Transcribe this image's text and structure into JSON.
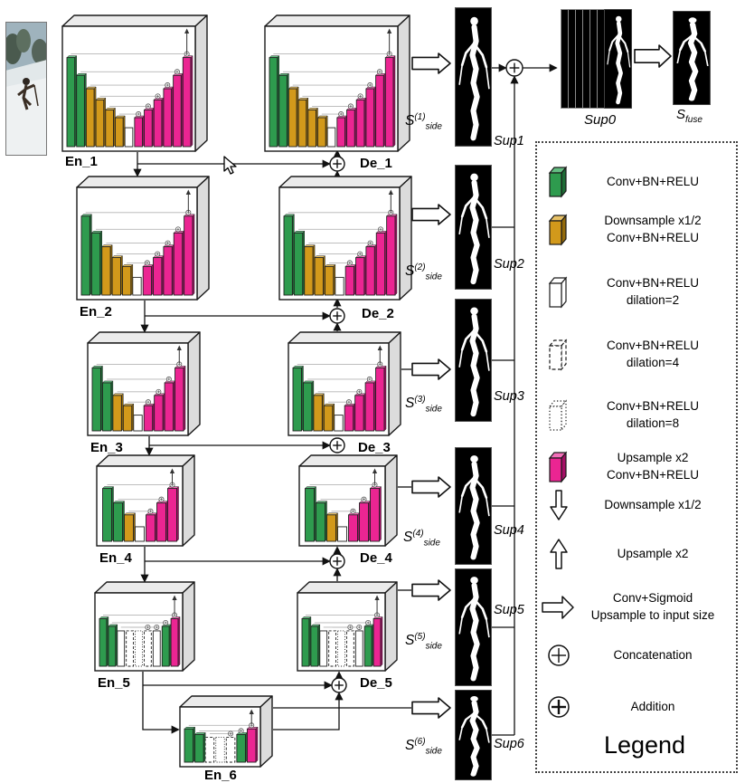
{
  "colors": {
    "green": "#2E9B4E",
    "green_top": "#63BE81",
    "green_side": "#1E6C36",
    "orange": "#D2991B",
    "orange_top": "#E8C267",
    "orange_side": "#936A0B",
    "magenta": "#EB2592",
    "magenta_top": "#F470BA",
    "magenta_side": "#A50F66",
    "stroke": "#1a1a1a",
    "box_top": "#ebebeb",
    "box_side": "#dcdcdc"
  },
  "blocks": {
    "en1": "En_1",
    "en2": "En_2",
    "en3": "En_3",
    "en4": "En_4",
    "en5": "En_5",
    "en6": "En_6",
    "de1": "De_1",
    "de2": "De_2",
    "de3": "De_3",
    "de4": "De_4",
    "de5": "De_5"
  },
  "side_outputs": [
    {
      "base": "S",
      "sup": "(1)",
      "sub": "side",
      "sup_label": "Sup1"
    },
    {
      "base": "S",
      "sup": "(2)",
      "sub": "side",
      "sup_label": "Sup2"
    },
    {
      "base": "S",
      "sup": "(3)",
      "sub": "side",
      "sup_label": "Sup3"
    },
    {
      "base": "S",
      "sup": "(4)",
      "sub": "side",
      "sup_label": "Sup4"
    },
    {
      "base": "S",
      "sup": "(5)",
      "sub": "side",
      "sup_label": "Sup5"
    },
    {
      "base": "S",
      "sup": "(6)",
      "sub": "side",
      "sup_label": "Sup6"
    }
  ],
  "fusion": {
    "sup0": "Sup0",
    "fuse_base": "S",
    "fuse_sub": "fuse"
  },
  "legend": {
    "title": "Legend",
    "items": [
      {
        "icon": "green-conv-block-icon",
        "lines": [
          "Conv+BN+RELU"
        ]
      },
      {
        "icon": "orange-downsample-block-icon",
        "lines": [
          "Downsample x1/2",
          "Conv+BN+RELU"
        ]
      },
      {
        "icon": "dilation2-block-icon",
        "lines": [
          "Conv+BN+RELU",
          "dilation=2"
        ]
      },
      {
        "icon": "dilation4-block-icon",
        "lines": [
          "Conv+BN+RELU",
          "dilation=4"
        ]
      },
      {
        "icon": "dilation8-block-icon",
        "lines": [
          "Conv+BN+RELU",
          "dilation=8"
        ]
      },
      {
        "icon": "magenta-upsample-block-icon",
        "lines": [
          "Upsample x2",
          "Conv+BN+RELU"
        ]
      },
      {
        "icon": "downsample-arrow-icon",
        "lines": [
          "Downsample x1/2"
        ]
      },
      {
        "icon": "upsample-arrow-icon",
        "lines": [
          "Upsample x2"
        ]
      },
      {
        "icon": "conv-sigmoid-arrow-icon",
        "lines": [
          "Conv+Sigmoid",
          "Upsample to input size"
        ]
      },
      {
        "icon": "concatenation-icon",
        "lines": [
          "Concatenation"
        ]
      },
      {
        "icon": "addition-icon",
        "lines": [
          "Addition"
        ]
      }
    ]
  }
}
